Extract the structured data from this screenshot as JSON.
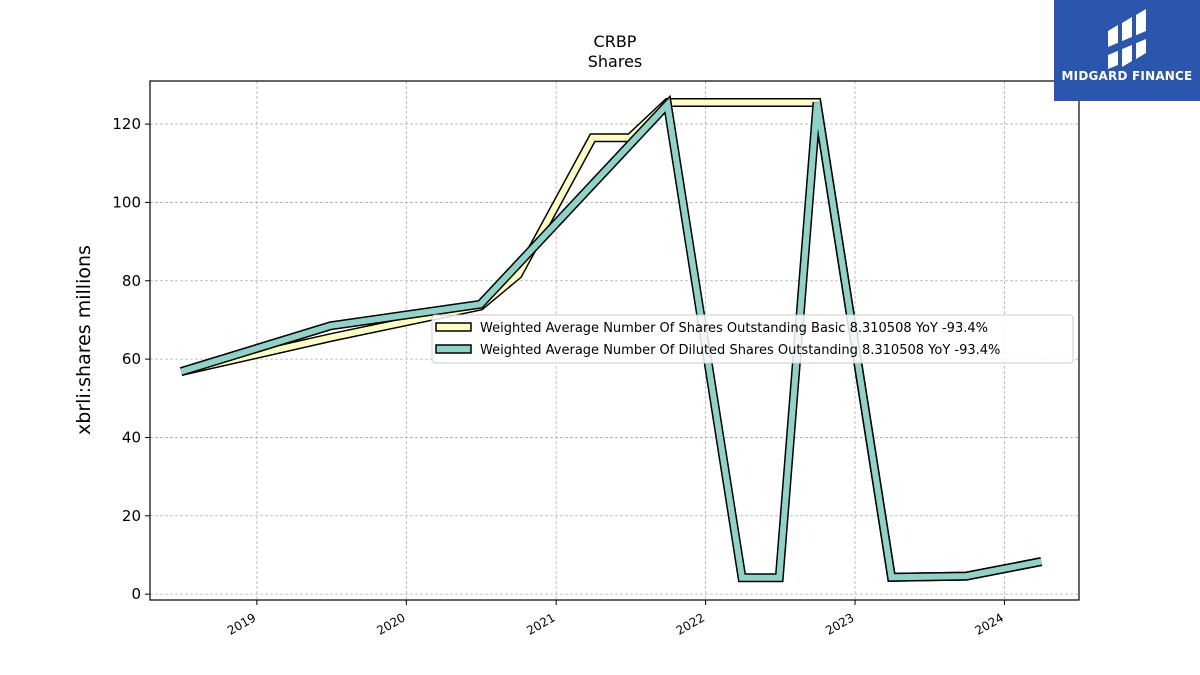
{
  "brand": {
    "logo_text": "MIDGARD FINANCE",
    "logo_icon": "midgard-logo-icon",
    "color": "#2b56ad"
  },
  "chart_data": {
    "type": "line",
    "title": "CRBP",
    "subtitle": "Shares",
    "xlabel": "",
    "ylabel": "xbrli:shares millions",
    "xlim": [
      "2018-04-15",
      "2024-07-01"
    ],
    "ylim": [
      -1.5,
      131
    ],
    "x_ticks": [
      "2019",
      "2020",
      "2021",
      "2022",
      "2023",
      "2024"
    ],
    "y_ticks": [
      0,
      20,
      40,
      60,
      80,
      100,
      120
    ],
    "grid": true,
    "legend_position": "center-right",
    "series": [
      {
        "name": "Weighted Average Number Of Shares Outstanding Basic  8.310508 YoY -93.4%",
        "color": "#ffffbf",
        "x": [
          "2018-06-30",
          "2019-06-30",
          "2020-06-30",
          "2020-09-30",
          "2021-03-31",
          "2021-06-30",
          "2021-09-30",
          "2022-03-31",
          "2022-06-30",
          "2022-09-30",
          "2023-03-31",
          "2023-09-30",
          "2024-03-31"
        ],
        "values": [
          56.8,
          65.5,
          73.5,
          81.5,
          116.5,
          116.5,
          125.5,
          125.5,
          125.5,
          125.5,
          4.3,
          4.6,
          8.3
        ]
      },
      {
        "name": "Weighted Average Number Of Diluted Shares Outstanding  8.310508 YoY -93.4%",
        "color": "#8dd3c7",
        "x": [
          "2018-06-30",
          "2019-06-30",
          "2020-06-30",
          "2021-09-30",
          "2022-03-31",
          "2022-06-30",
          "2022-09-30",
          "2023-03-31",
          "2023-09-30",
          "2024-03-31"
        ],
        "values": [
          56.8,
          68.5,
          74.0,
          125.0,
          4.2,
          4.2,
          125.5,
          4.3,
          4.6,
          8.3
        ]
      }
    ]
  }
}
